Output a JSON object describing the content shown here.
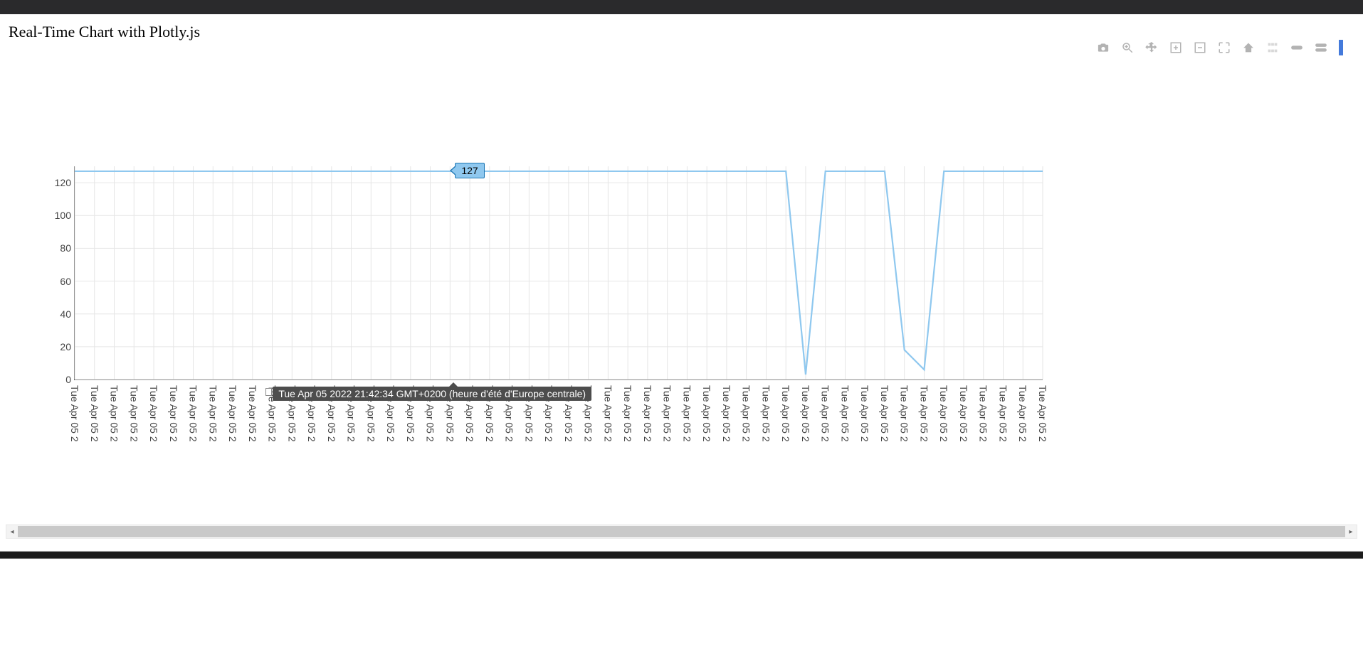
{
  "page": {
    "title": "Real-Time Chart with Plotly.js"
  },
  "modebar_icons": [
    "camera-icon",
    "zoom-icon",
    "pan-icon",
    "zoom-in-icon",
    "zoom-out-icon",
    "autoscale-icon",
    "reset-axes-icon",
    "spike-lines-icon",
    "hover-closest-icon",
    "hover-compare-icon",
    "plotly-logo-icon"
  ],
  "chart": {
    "type": "line",
    "line_color": "#8fc8ef",
    "line_width": 2.2,
    "background_color": "#ffffff",
    "grid_color": "#e6e6e6",
    "axis_color": "#444444",
    "tick_font_family": "Arial",
    "tick_font_size": 14,
    "tick_color": "#444444",
    "y_axis": {
      "min": 0,
      "max": 130,
      "tick_step": 20,
      "ticks": [
        0,
        20,
        40,
        60,
        80,
        100,
        120
      ]
    },
    "x_axis": {
      "tick_label": "Tue Apr 05 2",
      "tick_count": 50
    },
    "values": [
      127,
      127,
      127,
      127,
      127,
      127,
      127,
      127,
      127,
      127,
      127,
      127,
      127,
      127,
      127,
      127,
      127,
      127,
      127,
      127,
      127,
      127,
      127,
      127,
      127,
      127,
      127,
      127,
      127,
      127,
      127,
      127,
      127,
      127,
      127,
      127,
      127,
      3,
      127,
      127,
      127,
      127,
      18,
      6,
      127,
      127,
      127,
      127,
      127,
      127
    ],
    "hover": {
      "index": 19,
      "y_value": "127",
      "x_label": "Tue Apr 05 2022 21:42:34 GMT+0200 (heure d'été d'Europe centrale)"
    }
  }
}
